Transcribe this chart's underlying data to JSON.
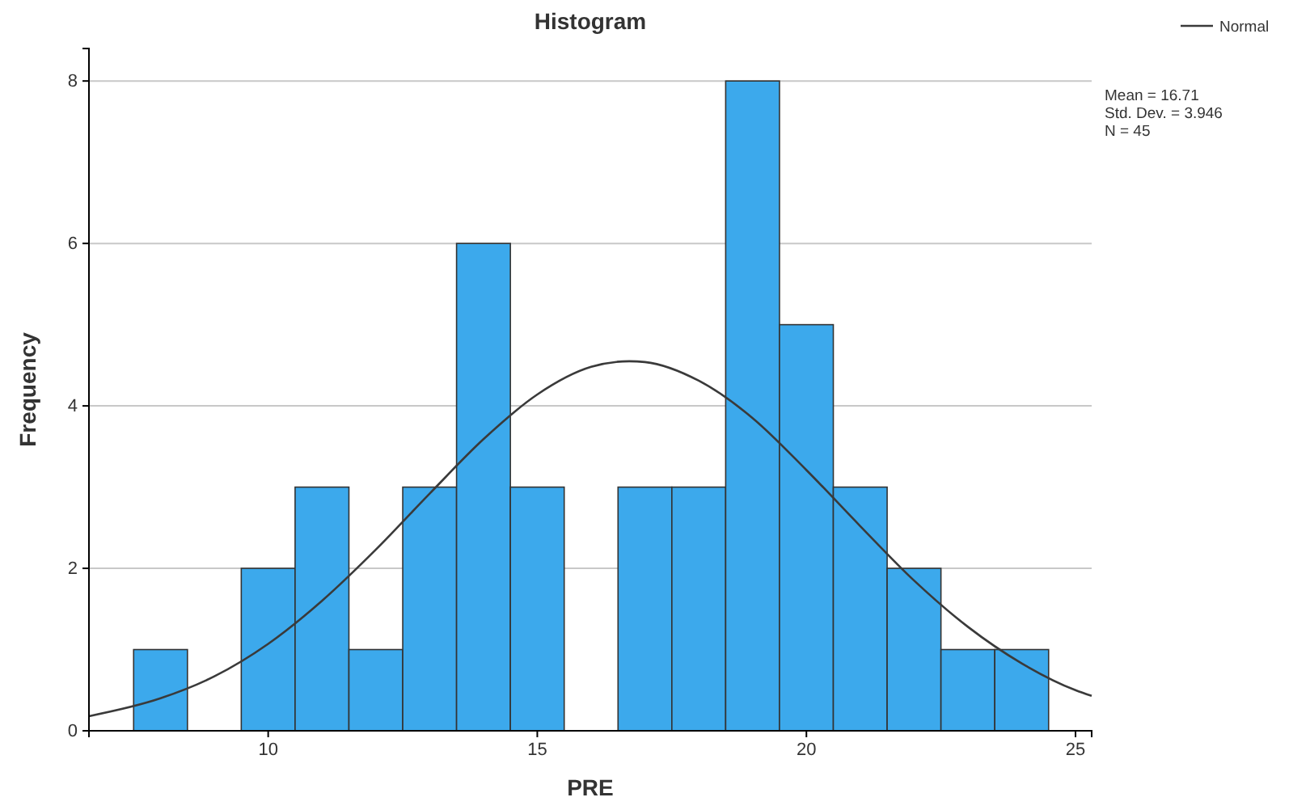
{
  "chart_data": {
    "type": "histogram",
    "title": "Histogram",
    "xlabel": "PRE",
    "ylabel": "Frequency",
    "bins": [
      7.5,
      8.5,
      9.5,
      10.5,
      11.5,
      12.5,
      13.5,
      14.5,
      15.5,
      16.5,
      17.5,
      18.5,
      19.5,
      20.5,
      21.5,
      22.5,
      23.5,
      24.5
    ],
    "values": [
      1,
      0,
      2,
      3,
      1,
      3,
      6,
      3,
      0,
      3,
      3,
      8,
      5,
      3,
      2,
      1,
      1
    ],
    "color": "#3ca9ec",
    "series": [
      {
        "type": "line",
        "name": "Normal",
        "color": "#3a3a3a",
        "x": [
          6.67,
          8,
          9,
          10,
          11,
          12,
          13,
          14,
          15,
          16,
          16.71,
          17,
          18,
          19,
          20,
          21,
          22,
          23,
          24,
          25,
          25.3
        ],
        "values": [
          0.18,
          0.4,
          0.67,
          1.07,
          1.6,
          2.23,
          2.92,
          3.59,
          4.14,
          4.48,
          4.55,
          4.54,
          4.31,
          3.85,
          3.21,
          2.52,
          1.85,
          1.28,
          0.83,
          0.5,
          0.43
        ]
      }
    ],
    "annotations": [
      "Mean = 16.71",
      "Std. Dev. = 3.946",
      "N = 45"
    ],
    "xlim": [
      6.67,
      25.3
    ],
    "ylim": [
      0,
      8.4
    ],
    "xticks": [
      10,
      15,
      20,
      25
    ],
    "yticks": [
      0,
      2,
      4,
      6,
      8
    ],
    "grid": "y",
    "legend": "top right",
    "marker": "none",
    "line_style": "solid"
  }
}
